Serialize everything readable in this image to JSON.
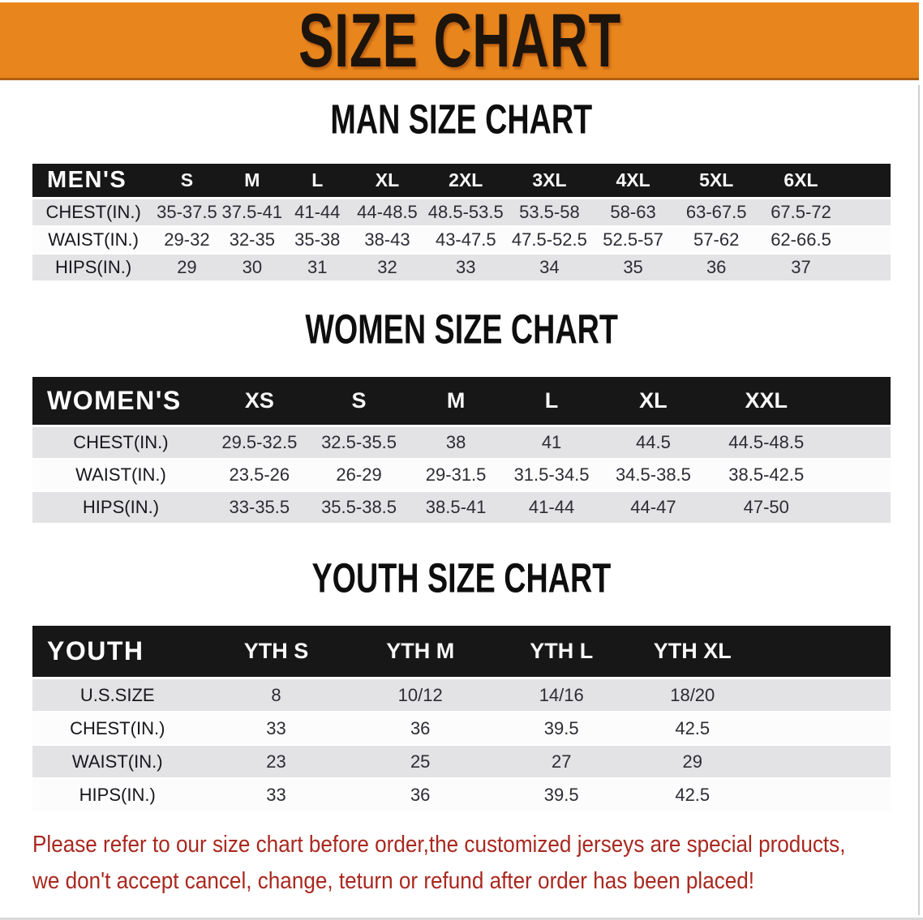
{
  "banner": {
    "title": "SIZE CHART",
    "background_color": "#E8851C"
  },
  "sections": [
    {
      "id": "men",
      "title": "MAN SIZE CHART",
      "corner": "MEN'S",
      "columns": [
        "S",
        "M",
        "L",
        "XL",
        "2XL",
        "3XL",
        "4XL",
        "5XL",
        "6XL"
      ],
      "rows": [
        {
          "label": "CHEST(IN.)",
          "values": [
            "35-37.5",
            "37.5-41",
            "41-44",
            "44-48.5",
            "48.5-53.5",
            "53.5-58",
            "58-63",
            "63-67.5",
            "67.5-72"
          ]
        },
        {
          "label": "WAIST(IN.)",
          "values": [
            "29-32",
            "32-35",
            "35-38",
            "38-43",
            "43-47.5",
            "47.5-52.5",
            "52.5-57",
            "57-62",
            "62-66.5"
          ]
        },
        {
          "label": "HIPS(IN.)",
          "values": [
            "29",
            "30",
            "31",
            "32",
            "33",
            "34",
            "35",
            "36",
            "37"
          ]
        }
      ]
    },
    {
      "id": "women",
      "title": "WOMEN SIZE CHART",
      "corner": "WOMEN'S",
      "columns": [
        "XS",
        "S",
        "M",
        "L",
        "XL",
        "XXL"
      ],
      "rows": [
        {
          "label": "CHEST(IN.)",
          "values": [
            "29.5-32.5",
            "32.5-35.5",
            "38",
            "41",
            "44.5",
            "44.5-48.5"
          ]
        },
        {
          "label": "WAIST(IN.)",
          "values": [
            "23.5-26",
            "26-29",
            "29-31.5",
            "31.5-34.5",
            "34.5-38.5",
            "38.5-42.5"
          ]
        },
        {
          "label": "HIPS(IN.)",
          "values": [
            "33-35.5",
            "35.5-38.5",
            "38.5-41",
            "41-44",
            "44-47",
            "47-50"
          ]
        }
      ]
    },
    {
      "id": "youth",
      "title": "YOUTH SIZE CHART",
      "corner": "YOUTH",
      "columns": [
        "YTH S",
        "YTH M",
        "YTH L",
        "YTH XL"
      ],
      "rows": [
        {
          "label": "U.S.SIZE",
          "values": [
            "8",
            "10/12",
            "14/16",
            "18/20"
          ]
        },
        {
          "label": "CHEST(IN.)",
          "values": [
            "33",
            "36",
            "39.5",
            "42.5"
          ]
        },
        {
          "label": "WAIST(IN.)",
          "values": [
            "23",
            "25",
            "27",
            "29"
          ]
        },
        {
          "label": "HIPS(IN.)",
          "values": [
            "33",
            "36",
            "39.5",
            "42.5"
          ]
        }
      ]
    }
  ],
  "notice": {
    "line1": "Please refer to our size chart before order,the customized jerseys are special products,",
    "line2": "we don't accept cancel, change, teturn or refund after order has been placed!",
    "color": "#A9281F"
  }
}
